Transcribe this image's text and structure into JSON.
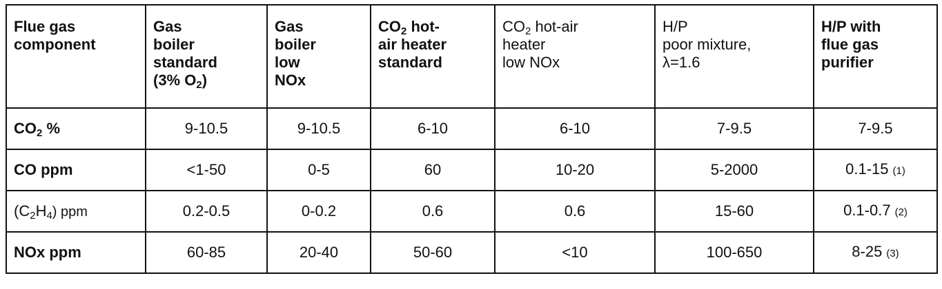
{
  "table": {
    "headers": [
      {
        "lines": [
          "Flue gas",
          "component"
        ]
      },
      {
        "lines": [
          "Gas",
          "boiler",
          "standard"
        ],
        "extra_pre": "(3% O",
        "extra_sub": "2",
        "extra_post": ")"
      },
      {
        "lines": [
          "Gas",
          "boiler",
          "low",
          "NOx"
        ]
      },
      {
        "line1_pre": "CO",
        "line1_sub": "2",
        "line1_post": " hot-",
        "lines_rest": [
          "air heater",
          "standard"
        ]
      },
      {
        "line1_pre": "CO",
        "line1_sub": "2",
        "line1_post": " hot-air",
        "lines_rest": [
          "heater",
          "low NOx"
        ]
      },
      {
        "lines": [
          "H/P",
          "poor mixture,",
          "λ=1.6"
        ]
      },
      {
        "lines": [
          "H/P with",
          "flue gas",
          "purifier"
        ]
      }
    ],
    "rows": [
      {
        "label_pre": "CO",
        "label_sub": "2",
        "label_post": " %",
        "cells": [
          "9-10.5",
          "9-10.5",
          "6-10",
          "6-10",
          "7-9.5",
          "7-9.5"
        ],
        "footnote": ""
      },
      {
        "label_pre": "CO ppm",
        "label_sub": "",
        "label_post": "",
        "cells": [
          "<1-50",
          "0-5",
          "60",
          "10-20",
          "5-2000",
          "0.1-15"
        ],
        "footnote": "(1)"
      },
      {
        "label_pre": "(C",
        "label_sub": "2",
        "label_mid": "H",
        "label_sub2": "4",
        "label_post": ") ppm",
        "cells": [
          "0.2-0.5",
          "0-0.2",
          "0.6",
          "0.6",
          "15-60",
          "0.1-0.7"
        ],
        "footnote": "(2)"
      },
      {
        "label_pre": "NOx ppm",
        "label_sub": "",
        "label_post": "",
        "cells": [
          "60-85",
          "20-40",
          "50-60",
          "<10",
          "100-650",
          "8-25"
        ],
        "footnote": "(3)"
      }
    ]
  }
}
